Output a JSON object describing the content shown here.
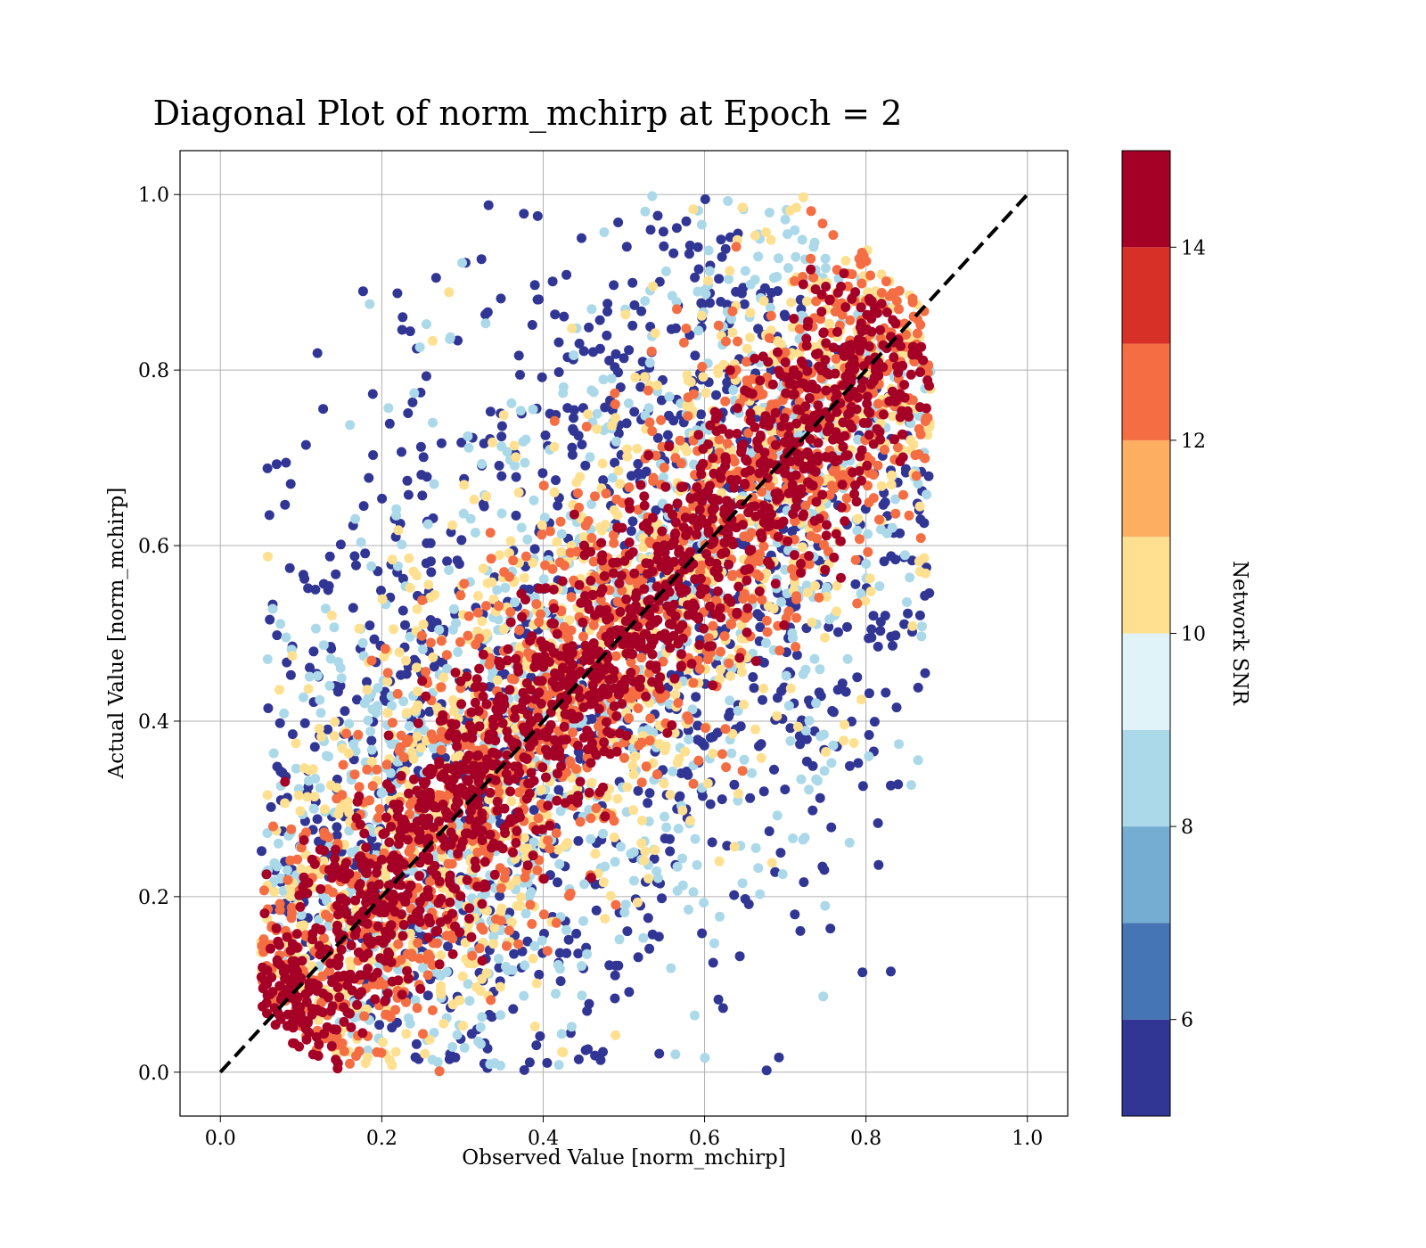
{
  "chart_data": {
    "type": "scatter",
    "title": "Diagonal Plot of norm_mchirp at Epoch = 2",
    "xlabel": "Observed Value [norm_mchirp]",
    "ylabel": "Actual Value [norm_mchirp]",
    "xlim": [
      -0.05,
      1.05
    ],
    "ylim": [
      -0.05,
      1.05
    ],
    "xticks": [
      "0.0",
      "0.2",
      "0.4",
      "0.6",
      "0.8",
      "1.0"
    ],
    "yticks": [
      "0.0",
      "0.2",
      "0.4",
      "0.6",
      "0.8",
      "1.0"
    ],
    "grid": true,
    "reference_line": {
      "style": "dashed",
      "color": "#000000",
      "from": [
        0,
        0
      ],
      "to": [
        1,
        1
      ]
    },
    "colorbar": {
      "label": "Network SNR",
      "range": [
        5,
        15
      ],
      "ticks": [
        "6",
        "8",
        "10",
        "12",
        "14"
      ],
      "colors": [
        "#313695",
        "#4575b4",
        "#74add1",
        "#abd9e9",
        "#e0f3f8",
        "#fee090",
        "#fdae61",
        "#f46d43",
        "#d73027",
        "#a50026"
      ]
    },
    "point_clouds": [
      {
        "description_snr": "high (>=14)",
        "color": "#a50026",
        "center_line": "y = x",
        "x_range": [
          0.06,
          0.85
        ],
        "spread": 0.07
      },
      {
        "description_snr": "12-14",
        "color": "#f46d43",
        "center_line": "y = x",
        "x_range": [
          0.07,
          0.87
        ],
        "spread": 0.11
      },
      {
        "description_snr": "10-12",
        "color": "#fee090",
        "center_line": "y = x",
        "x_range": [
          0.08,
          0.87
        ],
        "spread": 0.16
      },
      {
        "description_snr": "8-10",
        "color": "#abd9e9",
        "center_line": "y = x",
        "x_range": [
          0.1,
          0.85
        ],
        "spread": 0.22
      },
      {
        "description_snr": "<8",
        "color": "#313695",
        "center_line": "y = x",
        "x_range": [
          0.12,
          0.8
        ],
        "spread": 0.28
      }
    ]
  }
}
